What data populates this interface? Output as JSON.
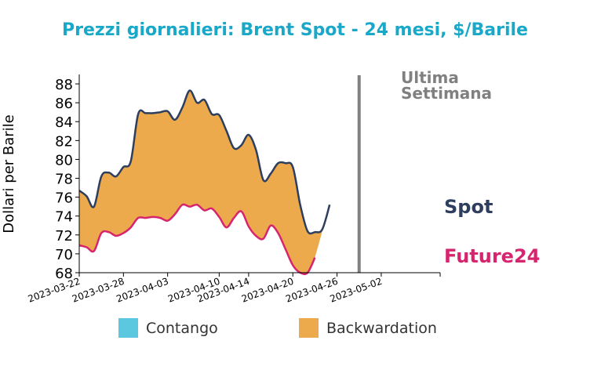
{
  "chart_data": {
    "type": "area",
    "title": "Prezzi giornalieri: Brent Spot - 24 mesi, $/Barile",
    "ylabel": "Dollari per Barile",
    "xlabel": "",
    "ylim": [
      68,
      89
    ],
    "yticks": [
      68,
      70,
      72,
      74,
      76,
      78,
      80,
      82,
      84,
      86,
      88
    ],
    "xlim": [
      "2023-03-22",
      "2023-05-10"
    ],
    "xticks": [
      "2023-03-22",
      "2023-03-28",
      "2023-04-03",
      "2023-04-10",
      "2023-04-14",
      "2023-04-20",
      "2023-04-26",
      "2023-05-02"
    ],
    "grid": false,
    "x": [
      "2023-03-22",
      "2023-03-23",
      "2023-03-24",
      "2023-03-25",
      "2023-03-26",
      "2023-03-27",
      "2023-03-28",
      "2023-03-29",
      "2023-03-30",
      "2023-03-31",
      "2023-04-01",
      "2023-04-02",
      "2023-04-03",
      "2023-04-04",
      "2023-04-05",
      "2023-04-06",
      "2023-04-07",
      "2023-04-08",
      "2023-04-09",
      "2023-04-10",
      "2023-04-11",
      "2023-04-12",
      "2023-04-13",
      "2023-04-14",
      "2023-04-15",
      "2023-04-16",
      "2023-04-17",
      "2023-04-18",
      "2023-04-19",
      "2023-04-20",
      "2023-04-21",
      "2023-04-22",
      "2023-04-23",
      "2023-04-24",
      "2023-04-25",
      "2023-04-26",
      "2023-04-27",
      "2023-04-28",
      "2023-04-29",
      "2023-04-30",
      "2023-05-01",
      "2023-05-02",
      "2023-05-03",
      "2023-05-04",
      "2023-05-05",
      "2023-05-06",
      "2023-05-07",
      "2023-05-08"
    ],
    "series": [
      {
        "name": "Spot",
        "color": "#2d3e5e",
        "values": [
          76.7,
          76.1,
          75.0,
          78.2,
          78.6,
          78.2,
          79.2,
          79.8,
          84.8,
          84.9,
          84.9,
          85.0,
          85.1,
          84.2,
          85.5,
          87.3,
          86.0,
          86.3,
          84.8,
          84.7,
          83.0,
          81.2,
          81.5,
          82.6,
          81.0,
          77.8,
          78.5,
          79.6,
          79.6,
          79.2,
          75.2,
          72.4,
          72.3,
          72.6,
          75.2,
          null,
          null,
          null,
          null,
          null,
          null,
          null,
          null,
          null,
          null,
          null,
          null,
          null
        ]
      },
      {
        "name": "Future24",
        "color": "#d6246e",
        "values": [
          70.9,
          70.7,
          70.3,
          72.2,
          72.3,
          71.9,
          72.2,
          72.8,
          73.8,
          73.8,
          73.9,
          73.8,
          73.5,
          74.2,
          75.2,
          75.0,
          75.2,
          74.6,
          74.8,
          73.9,
          72.8,
          73.8,
          74.5,
          72.9,
          71.9,
          71.6,
          73.0,
          72.2,
          70.5,
          68.8,
          68.0,
          68.0,
          69.6,
          null,
          null,
          null,
          null,
          null,
          null,
          null,
          null,
          null,
          null,
          null,
          null,
          null,
          null,
          null
        ]
      }
    ],
    "fill_colors": {
      "contango": "#5bc8e0",
      "backwardation": "#ecaa4c"
    },
    "annotation": {
      "line1": "Ultima",
      "line2": "Settimana",
      "x": "2023-04-29",
      "color": "#808080"
    },
    "legend": {
      "placement": "bottom",
      "entries": [
        "Contango",
        "Backwardation"
      ]
    },
    "title_color": "#1aa8c8"
  }
}
